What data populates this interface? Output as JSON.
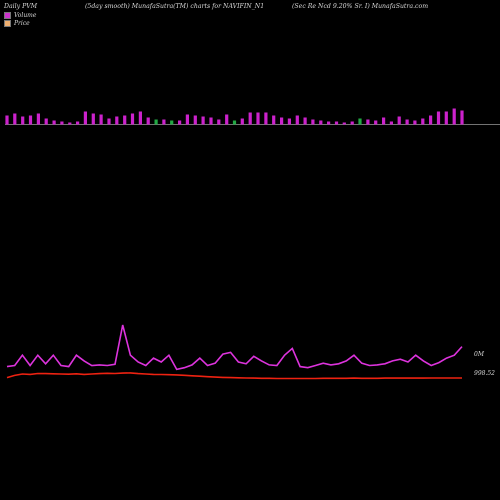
{
  "header": {
    "left": "Daily PVM",
    "middle": "(5day smooth) MunafaSutra(TM) charts for NAVIFIN_N1",
    "right": "(Sec Re   Ncd 9.20% Sr. I) MunafaSutra.com"
  },
  "legend": {
    "volume": {
      "label": "Volume",
      "color": "#cc33cc"
    },
    "price": {
      "label": "Price",
      "color": "#f0b070"
    }
  },
  "colors": {
    "volume_up": "#cc22cc",
    "volume_down": "#22aa44",
    "volume_line": "#dd33dd",
    "price_line": "#ee2211",
    "baseline": "#9a9a9a"
  },
  "chart_data": {
    "type": "bar",
    "volume_bars": [
      {
        "v": 9,
        "up": true
      },
      {
        "v": 11,
        "up": true
      },
      {
        "v": 8,
        "up": true
      },
      {
        "v": 9,
        "up": true
      },
      {
        "v": 11,
        "up": true
      },
      {
        "v": 6,
        "up": true
      },
      {
        "v": 4,
        "up": true
      },
      {
        "v": 3,
        "up": true
      },
      {
        "v": 2,
        "up": true
      },
      {
        "v": 3,
        "up": true
      },
      {
        "v": 13,
        "up": true
      },
      {
        "v": 11,
        "up": true
      },
      {
        "v": 10,
        "up": true
      },
      {
        "v": 6,
        "up": true
      },
      {
        "v": 8,
        "up": true
      },
      {
        "v": 9,
        "up": true
      },
      {
        "v": 11,
        "up": true
      },
      {
        "v": 13,
        "up": true
      },
      {
        "v": 7,
        "up": true
      },
      {
        "v": 5,
        "up": false
      },
      {
        "v": 5,
        "up": true
      },
      {
        "v": 4,
        "up": false
      },
      {
        "v": 4,
        "up": true
      },
      {
        "v": 10,
        "up": true
      },
      {
        "v": 9,
        "up": true
      },
      {
        "v": 8,
        "up": true
      },
      {
        "v": 7,
        "up": true
      },
      {
        "v": 5,
        "up": true
      },
      {
        "v": 10,
        "up": true
      },
      {
        "v": 4,
        "up": false
      },
      {
        "v": 6,
        "up": true
      },
      {
        "v": 12,
        "up": true
      },
      {
        "v": 12,
        "up": true
      },
      {
        "v": 12,
        "up": true
      },
      {
        "v": 9,
        "up": true
      },
      {
        "v": 7,
        "up": true
      },
      {
        "v": 6,
        "up": true
      },
      {
        "v": 9,
        "up": true
      },
      {
        "v": 7,
        "up": true
      },
      {
        "v": 5,
        "up": true
      },
      {
        "v": 4,
        "up": true
      },
      {
        "v": 3,
        "up": true
      },
      {
        "v": 3,
        "up": true
      },
      {
        "v": 2,
        "up": true
      },
      {
        "v": 3,
        "up": true
      },
      {
        "v": 6,
        "up": false
      },
      {
        "v": 5,
        "up": true
      },
      {
        "v": 4,
        "up": true
      },
      {
        "v": 7,
        "up": true
      },
      {
        "v": 3,
        "up": true
      },
      {
        "v": 8,
        "up": true
      },
      {
        "v": 5,
        "up": true
      },
      {
        "v": 4,
        "up": true
      },
      {
        "v": 6,
        "up": true
      },
      {
        "v": 9,
        "up": true
      },
      {
        "v": 13,
        "up": true
      },
      {
        "v": 13,
        "up": true
      },
      {
        "v": 16,
        "up": true
      },
      {
        "v": 14,
        "up": true
      }
    ],
    "volume_line": [
      20,
      22,
      40,
      22,
      40,
      25,
      40,
      22,
      20,
      40,
      30,
      22,
      23,
      22,
      24,
      93,
      40,
      28,
      22,
      35,
      28,
      40,
      15,
      18,
      23,
      35,
      22,
      26,
      42,
      45,
      28,
      25,
      38,
      30,
      23,
      22,
      40,
      52,
      20,
      18,
      22,
      26,
      23,
      25,
      30,
      40,
      26,
      22,
      23,
      25,
      30,
      33,
      28,
      40,
      30,
      22,
      27,
      35,
      40,
      55
    ],
    "price_line": [
      30,
      42,
      50,
      48,
      53,
      52,
      51,
      50,
      49,
      51,
      48,
      50,
      52,
      54,
      53,
      55,
      56,
      52,
      50,
      48,
      47,
      46,
      45,
      43,
      40,
      38,
      35,
      33,
      31,
      30,
      29,
      28,
      27,
      26,
      26,
      25,
      25,
      25,
      25,
      25,
      25,
      26,
      26,
      26,
      26,
      27,
      26,
      26,
      26,
      27,
      27,
      27,
      27,
      27,
      27,
      28,
      28,
      28,
      28,
      28
    ],
    "labels": {
      "volume_last": "0M",
      "price_last": "998.52"
    }
  }
}
